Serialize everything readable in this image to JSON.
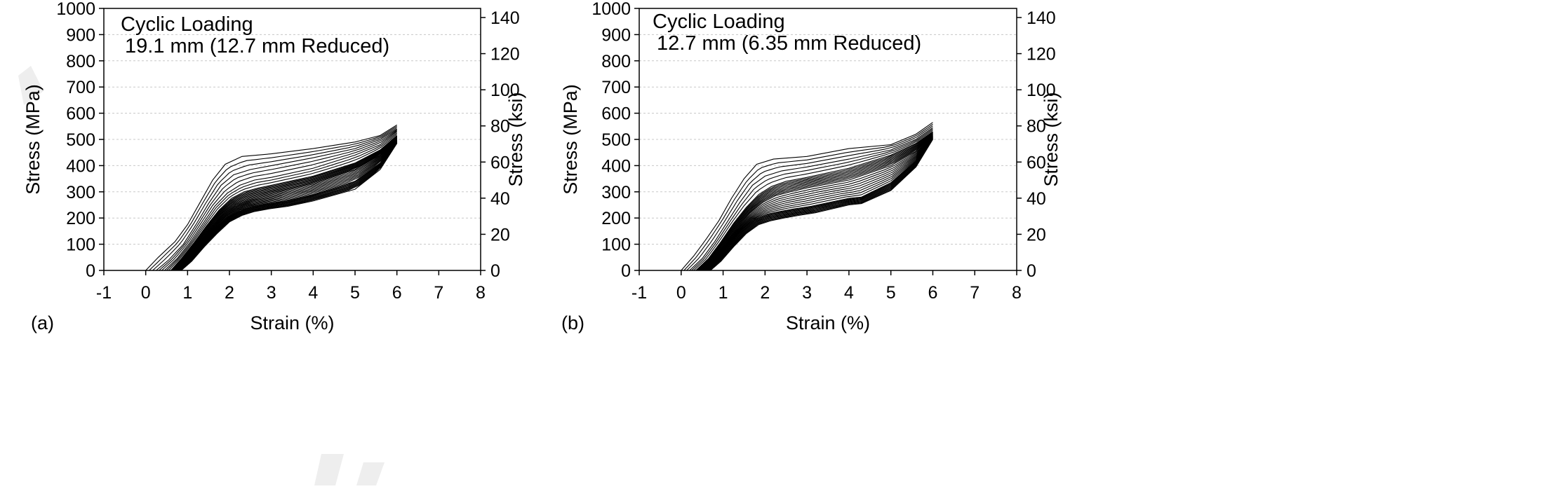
{
  "chart_data": [
    {
      "type": "line",
      "panel_label": "(a)",
      "annotation": [
        "Cyclic Loading",
        "19.1 mm (12.7 mm Reduced)"
      ],
      "xlabel": "Strain (%)",
      "ylabel": "Stress (MPa)",
      "ylabel_right": "Stress (ksi)",
      "xlim": [
        -1,
        8
      ],
      "ylim": [
        0,
        1000
      ],
      "ylim_right": [
        0,
        145.04
      ],
      "xticks": [
        "-1",
        "0",
        "1",
        "2",
        "3",
        "4",
        "5",
        "6",
        "7",
        "8"
      ],
      "yticks": [
        "0",
        "100",
        "200",
        "300",
        "400",
        "500",
        "600",
        "700",
        "800",
        "900",
        "1000"
      ],
      "yticks_right": [
        "0",
        "20",
        "40",
        "60",
        "80",
        "100",
        "120",
        "140"
      ],
      "grid": "horizontal-dotted",
      "legend": "none",
      "series": [
        {
          "x": [
            0.0,
            0.3,
            0.7,
            1.0,
            1.3,
            1.6,
            1.9,
            2.3,
            3.0,
            4.0,
            5.0,
            5.6,
            6.0
          ],
          "y": [
            0,
            50,
            110,
            175,
            260,
            345,
            405,
            435,
            445,
            465,
            490,
            515,
            555
          ]
        },
        {
          "x": [
            0.25,
            0.55,
            0.9,
            1.2,
            1.5,
            1.8,
            2.1,
            2.5,
            3.0,
            4.0,
            5.0,
            5.6,
            6.0
          ],
          "y": [
            0,
            40,
            100,
            175,
            255,
            325,
            365,
            385,
            400,
            430,
            465,
            500,
            540
          ]
        },
        {
          "x": [
            0.45,
            0.75,
            1.05,
            1.35,
            1.65,
            1.95,
            2.25,
            2.6,
            3.0,
            4.0,
            5.0,
            5.6,
            6.0
          ],
          "y": [
            0,
            45,
            105,
            175,
            245,
            295,
            325,
            345,
            355,
            390,
            440,
            480,
            530
          ]
        },
        {
          "x": [
            0.6,
            0.85,
            1.15,
            1.45,
            1.75,
            2.05,
            2.35,
            2.7,
            3.0,
            4.0,
            5.0,
            5.6,
            6.0
          ],
          "y": [
            0,
            45,
            105,
            170,
            230,
            275,
            300,
            315,
            325,
            360,
            410,
            460,
            515
          ]
        },
        {
          "x": [
            0.7,
            0.95,
            1.25,
            1.55,
            1.85,
            2.15,
            2.45,
            2.8,
            3.2,
            4.0,
            5.0,
            5.6,
            6.0
          ],
          "y": [
            0,
            40,
            100,
            160,
            215,
            250,
            270,
            285,
            300,
            330,
            385,
            440,
            505
          ]
        },
        {
          "x": [
            0.8,
            1.05,
            1.35,
            1.65,
            1.95,
            2.25,
            2.55,
            2.9,
            3.3,
            4.0,
            5.0,
            5.6,
            6.0
          ],
          "y": [
            0,
            40,
            100,
            155,
            200,
            230,
            245,
            255,
            265,
            290,
            340,
            410,
            495
          ]
        },
        {
          "x": [
            0.85,
            1.1,
            1.4,
            1.7,
            2.0,
            2.3,
            2.6,
            2.95,
            3.4,
            4.0,
            5.0,
            5.6,
            6.0
          ],
          "y": [
            0,
            35,
            90,
            140,
            185,
            210,
            225,
            235,
            245,
            265,
            310,
            385,
            485
          ]
        }
      ]
    },
    {
      "type": "line",
      "panel_label": "(b)",
      "annotation": [
        "Cyclic Loading",
        "12.7 mm (6.35 mm Reduced)"
      ],
      "xlabel": "Strain (%)",
      "ylabel": "Stress (MPa)",
      "ylabel_right": "Stress (ksi)",
      "xlim": [
        -1,
        8
      ],
      "ylim": [
        0,
        1000
      ],
      "ylim_right": [
        0,
        145.04
      ],
      "xticks": [
        "-1",
        "0",
        "1",
        "2",
        "3",
        "4",
        "5",
        "6",
        "7",
        "8"
      ],
      "yticks": [
        "0",
        "100",
        "200",
        "300",
        "400",
        "500",
        "600",
        "700",
        "800",
        "900",
        "1000"
      ],
      "yticks_right": [
        "0",
        "20",
        "40",
        "60",
        "80",
        "100",
        "120",
        "140"
      ],
      "grid": "horizontal-dotted",
      "legend": "none",
      "series": [
        {
          "x": [
            0.0,
            0.3,
            0.6,
            0.9,
            1.2,
            1.5,
            1.8,
            2.2,
            3.0,
            4.0,
            5.0,
            5.6,
            6.0
          ],
          "y": [
            0,
            55,
            120,
            190,
            275,
            350,
            405,
            425,
            435,
            465,
            480,
            520,
            565
          ]
        },
        {
          "x": [
            0.2,
            0.5,
            0.8,
            1.1,
            1.4,
            1.7,
            2.0,
            2.4,
            3.0,
            4.0,
            5.0,
            5.6,
            6.0
          ],
          "y": [
            0,
            45,
            110,
            185,
            260,
            325,
            360,
            380,
            395,
            425,
            460,
            500,
            545
          ]
        },
        {
          "x": [
            0.35,
            0.65,
            0.95,
            1.25,
            1.55,
            1.85,
            2.15,
            2.5,
            3.0,
            4.0,
            5.0,
            5.6,
            6.0
          ],
          "y": [
            0,
            45,
            110,
            180,
            240,
            290,
            320,
            340,
            355,
            390,
            440,
            485,
            530
          ]
        },
        {
          "x": [
            0.5,
            0.75,
            1.05,
            1.35,
            1.65,
            1.95,
            2.25,
            2.6,
            3.0,
            4.0,
            5.0,
            5.6,
            6.0
          ],
          "y": [
            0,
            40,
            100,
            165,
            220,
            260,
            285,
            300,
            315,
            345,
            400,
            455,
            520
          ]
        },
        {
          "x": [
            0.6,
            0.85,
            1.15,
            1.45,
            1.75,
            2.05,
            2.35,
            2.7,
            3.1,
            4.0,
            4.3,
            5.0,
            5.6,
            6.0
          ],
          "y": [
            0,
            40,
            100,
            155,
            195,
            215,
            225,
            235,
            245,
            275,
            280,
            335,
            420,
            510
          ]
        },
        {
          "x": [
            0.7,
            0.95,
            1.25,
            1.55,
            1.85,
            2.15,
            2.45,
            2.8,
            3.2,
            4.0,
            4.3,
            5.0,
            5.6,
            6.0
          ],
          "y": [
            0,
            35,
            90,
            140,
            175,
            190,
            200,
            210,
            220,
            250,
            255,
            305,
            395,
            500
          ]
        }
      ]
    }
  ]
}
